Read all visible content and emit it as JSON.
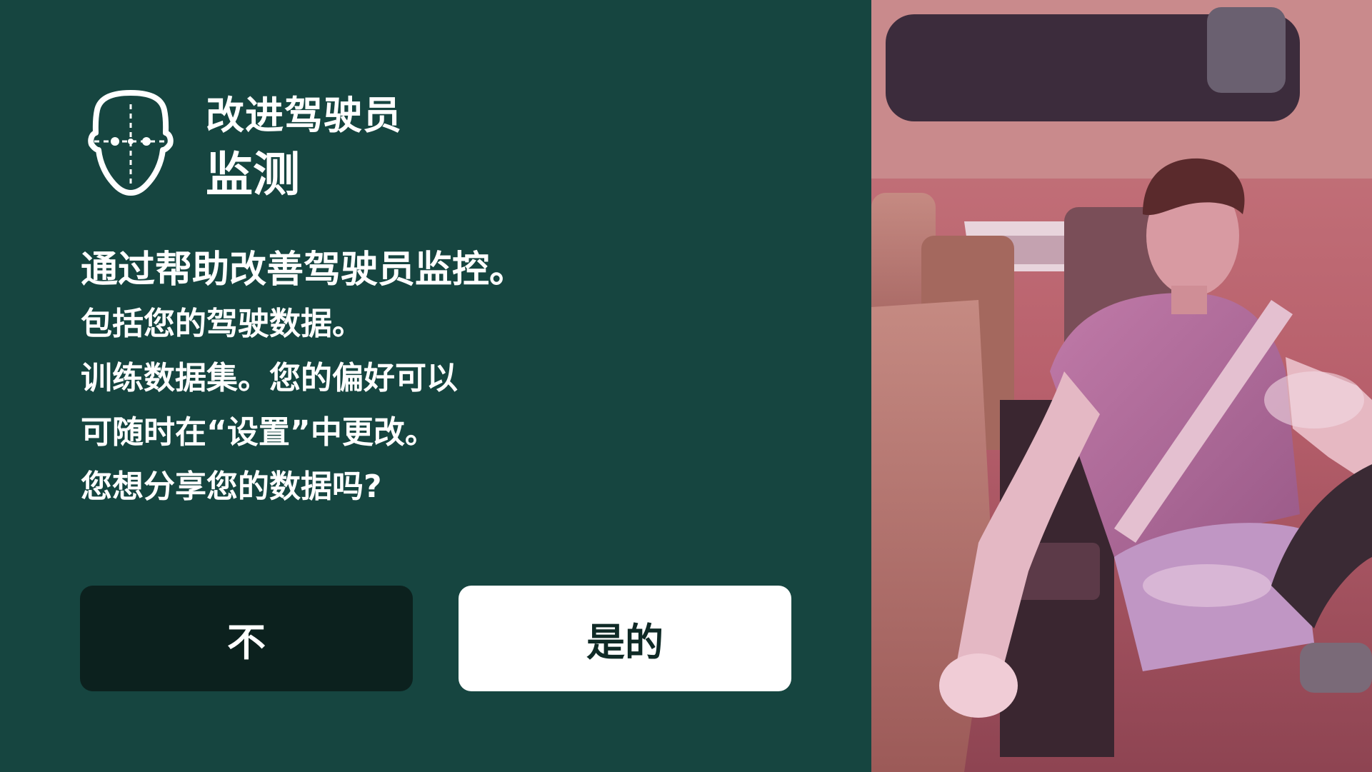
{
  "header": {
    "icon": "face-scan-icon",
    "title_line1": "改进驾驶员",
    "title_line2": "监测"
  },
  "body": {
    "lead": "通过帮助改善驾驶员监控。",
    "lines": [
      "包括您的驾驶数据。",
      "训练数据集。您的偏好可以",
      "可随时在“设置”中更改。",
      "您想分享您的数据吗?"
    ]
  },
  "buttons": {
    "no_label": "不",
    "yes_label": "是的"
  },
  "camera_preview": {
    "subject": "driver-camera-feed"
  },
  "colors": {
    "panel_bg": "#164540",
    "no_button_bg": "#0c211e",
    "yes_button_bg": "#ffffff",
    "text": "#ffffff"
  }
}
